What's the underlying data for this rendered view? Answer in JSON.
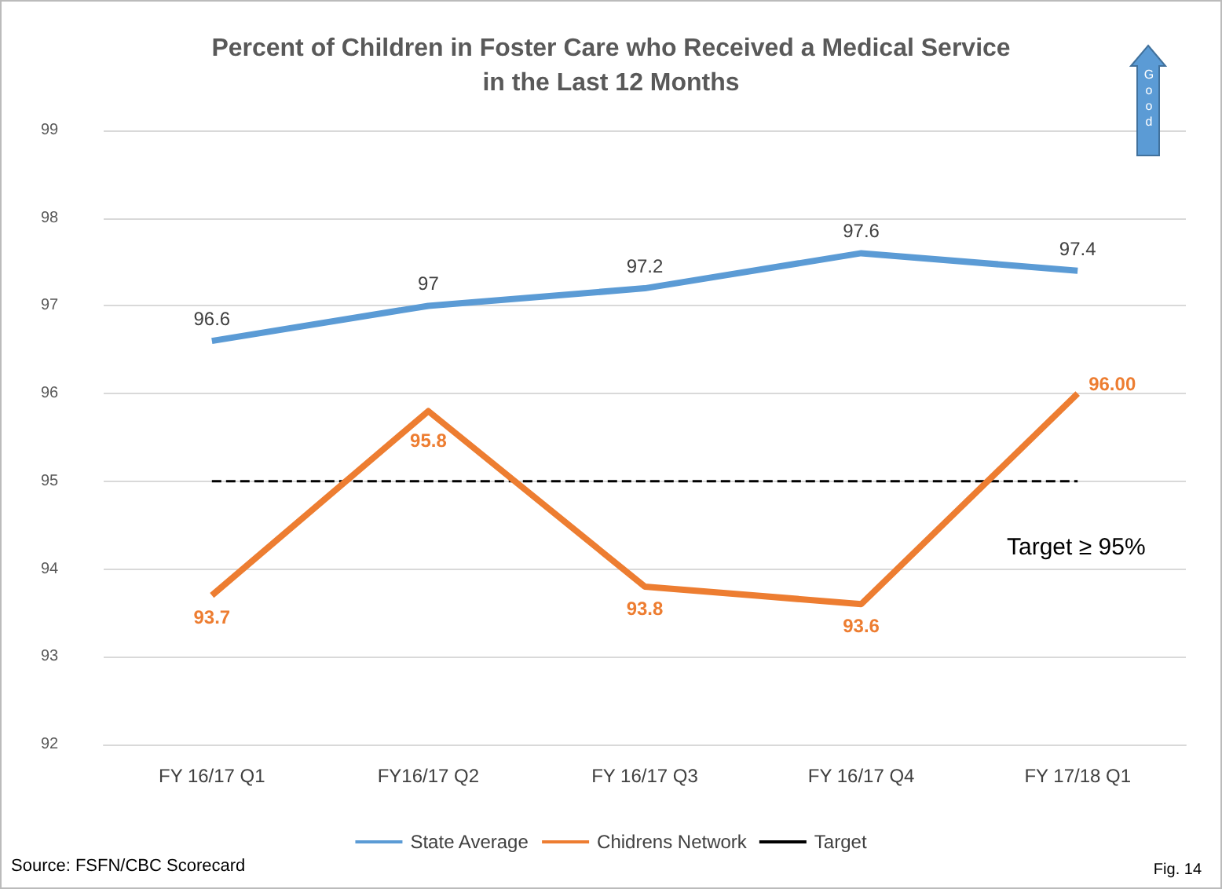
{
  "chart_data": {
    "type": "line",
    "title": "Percent of Children in Foster Care who Received a Medical Service\nin the Last 12 Months",
    "categories": [
      "FY 16/17 Q1",
      "FY16/17 Q2",
      "FY 16/17 Q3",
      "FY 16/17 Q4",
      "FY 17/18 Q1"
    ],
    "series": [
      {
        "name": "State Average",
        "color": "#5b9bd5",
        "values": [
          96.6,
          97,
          97.2,
          97.6,
          97.4
        ],
        "value_labels": [
          "96.6",
          "97",
          "97.2",
          "97.6",
          "97.4"
        ]
      },
      {
        "name": "Chidrens Network",
        "color": "#ed7d31",
        "values": [
          93.7,
          95.8,
          93.8,
          93.6,
          96.0
        ],
        "value_labels": [
          "93.7",
          "95.8",
          "93.8",
          "93.6",
          "96.00"
        ]
      },
      {
        "name": "Target",
        "color": "#000000",
        "values": [
          95,
          95,
          95,
          95,
          95
        ],
        "line_style": "dashed"
      }
    ],
    "ylim": [
      92,
      99
    ],
    "yticks": [
      92,
      93,
      94,
      95,
      96,
      97,
      98,
      99
    ],
    "grid": "y",
    "legend": "bottom",
    "marker": "none",
    "annotations": [
      "Target ≥ 95%",
      "Good",
      "Source: FSFN/CBC Scorecard",
      "Fig. 14"
    ]
  }
}
